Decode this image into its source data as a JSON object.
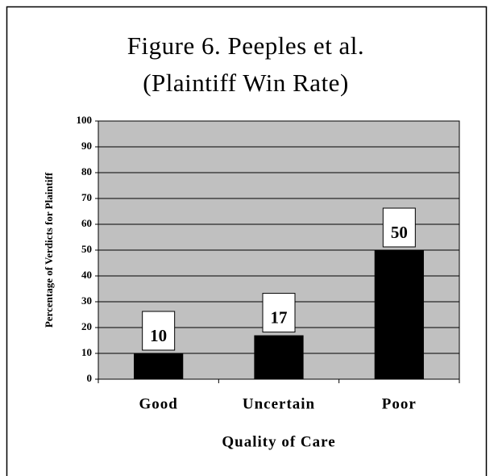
{
  "chart_data": {
    "type": "bar",
    "title": [
      "Figure 6.  Peeples et al.",
      "(Plaintiff Win Rate)"
    ],
    "x_label": "Quality of Care",
    "y_label": "Percentage of Verdicts for Plaintiff",
    "categories": [
      "Good",
      "Uncertain",
      "Poor"
    ],
    "values": [
      10,
      17,
      50
    ],
    "color": "#000000",
    "plot_background": "#c0c0c0",
    "ylim": [
      0,
      100
    ],
    "yticks": [
      0,
      10,
      20,
      30,
      40,
      50,
      60,
      70,
      80,
      90,
      100
    ],
    "grid": true
  }
}
